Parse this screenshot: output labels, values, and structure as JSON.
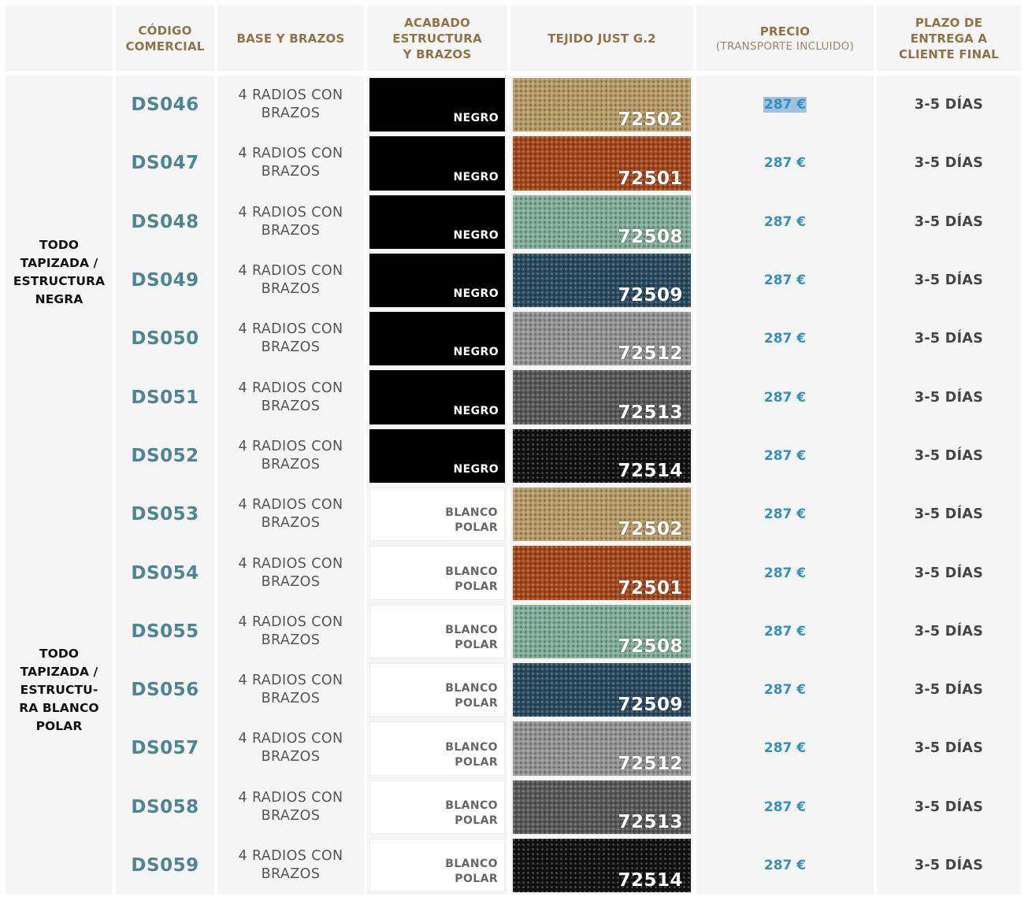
{
  "headers": {
    "codigo": "CÓDIGO COMERCIAL",
    "base": "BASE Y BRAZOS",
    "acabado": "ACABADO ESTRUCTURA Y BRAZOS",
    "tejido": "TEJIDO JUST G.2",
    "precio": "PRECIO",
    "precio_sub": "(TRANSPORTE INCLUIDO)",
    "plazo": "PLAZO DE ENTREGA A CLIENTE FINAL"
  },
  "sections": [
    {
      "lines": [
        "TODO",
        "TAPIZADA /",
        "ESTRUCTURA",
        "NEGRA"
      ]
    },
    {
      "lines": [
        "TODO",
        "TAPIZADA /",
        "ESTRUCTU-",
        "RA BLANCO",
        "POLAR"
      ]
    }
  ],
  "colors": {
    "header_text": "#8e7446",
    "code_text": "#4d8590",
    "price_text": "#3291bd",
    "cell_bg": "#f5f5f5",
    "fabric_72502": "#b69a66",
    "fabric_72501": "#a4481c",
    "fabric_72508": "#80ab98",
    "fabric_72509": "#2a4a5e",
    "fabric_72512": "#929292",
    "fabric_72513": "#585858",
    "fabric_72514": "#121212"
  },
  "rows": [
    {
      "code": "DS046",
      "base": [
        "4 RADIOS CON",
        "BRAZOS"
      ],
      "finish": [
        "NEGRO"
      ],
      "fabric": "72502",
      "price": "287 €",
      "lead": "3-5 DÍAS"
    },
    {
      "code": "DS047",
      "base": [
        "4 RADIOS CON",
        "BRAZOS"
      ],
      "finish": [
        "NEGRO"
      ],
      "fabric": "72501",
      "price": "287 €",
      "lead": "3-5 DÍAS"
    },
    {
      "code": "DS048",
      "base": [
        "4 RADIOS CON",
        "BRAZOS"
      ],
      "finish": [
        "NEGRO"
      ],
      "fabric": "72508",
      "price": "287 €",
      "lead": "3-5 DÍAS"
    },
    {
      "code": "DS049",
      "base": [
        "4 RADIOS CON",
        "BRAZOS"
      ],
      "finish": [
        "NEGRO"
      ],
      "fabric": "72509",
      "price": "287 €",
      "lead": "3-5 DÍAS"
    },
    {
      "code": "DS050",
      "base": [
        "4 RADIOS CON",
        "BRAZOS"
      ],
      "finish": [
        "NEGRO"
      ],
      "fabric": "72512",
      "price": "287 €",
      "lead": "3-5 DÍAS"
    },
    {
      "code": "DS051",
      "base": [
        "4 RADIOS CON",
        "BRAZOS"
      ],
      "finish": [
        "NEGRO"
      ],
      "fabric": "72513",
      "price": "287 €",
      "lead": "3-5 DÍAS"
    },
    {
      "code": "DS052",
      "base": [
        "4 RADIOS CON",
        "BRAZOS"
      ],
      "finish": [
        "NEGRO"
      ],
      "fabric": "72514",
      "price": "287 €",
      "lead": "3-5 DÍAS"
    },
    {
      "code": "DS053",
      "base": [
        "4 RADIOS CON",
        "BRAZOS"
      ],
      "finish": [
        "BLANCO",
        "POLAR"
      ],
      "fabric": "72502",
      "price": "287 €",
      "lead": "3-5 DÍAS"
    },
    {
      "code": "DS054",
      "base": [
        "4 RADIOS CON",
        "BRAZOS"
      ],
      "finish": [
        "BLANCO",
        "POLAR"
      ],
      "fabric": "72501",
      "price": "287 €",
      "lead": "3-5 DÍAS"
    },
    {
      "code": "DS055",
      "base": [
        "4 RADIOS CON",
        "BRAZOS"
      ],
      "finish": [
        "BLANCO",
        "POLAR"
      ],
      "fabric": "72508",
      "price": "287 €",
      "lead": "3-5 DÍAS"
    },
    {
      "code": "DS056",
      "base": [
        "4 RADIOS CON",
        "BRAZOS"
      ],
      "finish": [
        "BLANCO",
        "POLAR"
      ],
      "fabric": "72509",
      "price": "287 €",
      "lead": "3-5 DÍAS"
    },
    {
      "code": "DS057",
      "base": [
        "4 RADIOS CON",
        "BRAZOS"
      ],
      "finish": [
        "BLANCO",
        "POLAR"
      ],
      "fabric": "72512",
      "price": "287 €",
      "lead": "3-5 DÍAS"
    },
    {
      "code": "DS058",
      "base": [
        "4 RADIOS CON",
        "BRAZOS"
      ],
      "finish": [
        "BLANCO",
        "POLAR"
      ],
      "fabric": "72513",
      "price": "287 €",
      "lead": "3-5 DÍAS"
    },
    {
      "code": "DS059",
      "base": [
        "4 RADIOS CON",
        "BRAZOS"
      ],
      "finish": [
        "BLANCO",
        "POLAR"
      ],
      "fabric": "72514",
      "price": "287 €",
      "lead": "3-5 DÍAS"
    }
  ]
}
